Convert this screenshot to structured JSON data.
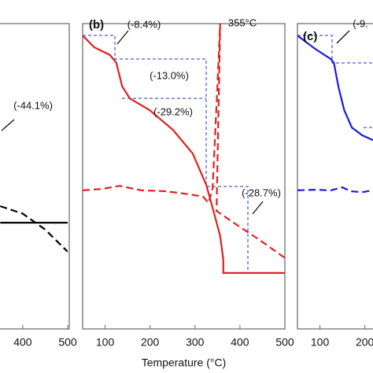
{
  "chart_data": [
    {
      "type": "line",
      "xlim": [
        50,
        500
      ],
      "xticks": [
        400,
        500
      ],
      "ylim": [
        2,
        104
      ],
      "y2lim": [
        2,
        104
      ],
      "annotations": [
        "(-44.1%)"
      ],
      "series": [
        {
          "color": "#000000",
          "dashed": false,
          "x": [
            350,
            500
          ],
          "values": [
            37.5,
            37.5
          ]
        },
        {
          "color": "#000000",
          "dashed": true,
          "axis": "y2",
          "x": [
            350,
            400,
            450,
            500
          ],
          "values": [
            43.0,
            40.5,
            35.2,
            27.8
          ]
        }
      ]
    },
    {
      "type": "line",
      "label": "(b)",
      "xlabel": "Temperature (°C)",
      "xlim": [
        50,
        500
      ],
      "xticks": [
        100,
        200,
        300,
        400,
        500
      ],
      "ylim": [
        2,
        104
      ],
      "y2lim": [
        2,
        104
      ],
      "annotations": [
        "(-8.4%)",
        "(-13.0%)",
        "(-29.2%)",
        "(-28.7%)",
        "355°C"
      ],
      "series": [
        {
          "color": "#e02020",
          "dashed": false,
          "x": [
            50,
            76,
            111,
            125,
            138,
            155,
            199,
            251,
            295,
            325,
            342,
            356,
            363,
            363,
            500
          ],
          "values": [
            100,
            96.1,
            93.5,
            90.9,
            83.0,
            79.0,
            75.1,
            68.5,
            60.6,
            50.1,
            40.9,
            33.0,
            25.1,
            20.7,
            20.7
          ]
        },
        {
          "color": "#e02020",
          "dashed": true,
          "axis": "y2",
          "x": [
            50,
            94,
            132,
            181,
            234,
            286,
            318,
            330,
            339,
            349,
            356,
            348,
            391,
            444,
            500
          ],
          "values": [
            48.3,
            48.8,
            49.8,
            48.3,
            48.0,
            47.0,
            46.2,
            44.1,
            48.8,
            80.3,
            104.0,
            41.4,
            37.0,
            31.7,
            25.7
          ]
        }
      ]
    },
    {
      "type": "line",
      "label": "(c)",
      "xlim": [
        50,
        500
      ],
      "xticks": [
        100,
        200
      ],
      "ylim": [
        2,
        104
      ],
      "y2lim": [
        2,
        104
      ],
      "annotations": [
        "(-9."
      ],
      "series": [
        {
          "color": "#1a1ae0",
          "dashed": false,
          "x": [
            50,
            89,
            124,
            131,
            141,
            154,
            171,
            194,
            218
          ],
          "values": [
            100,
            95.6,
            92.2,
            90.9,
            83.0,
            75.1,
            69.3,
            66.7,
            65.1
          ]
        },
        {
          "color": "#1a1ae0",
          "dashed": true,
          "axis": "y2",
          "x": [
            50,
            89,
            124,
            150,
            168,
            194,
            218
          ],
          "values": [
            48.3,
            48.5,
            48.3,
            49.3,
            48.0,
            47.7,
            48.3
          ]
        }
      ]
    }
  ]
}
